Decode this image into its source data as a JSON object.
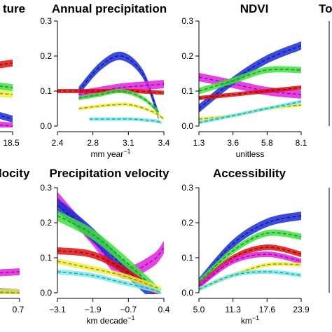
{
  "chart_data": [
    {
      "id": "temperature",
      "type": "line",
      "title": "ture",
      "xlabel": "",
      "xticks": [
        "18.5"
      ],
      "series": [
        {
          "color": "#e01010",
          "x": [
            0,
            1
          ],
          "y": [
            0.13,
            0.18
          ]
        },
        {
          "color": "#1a2ad8",
          "x": [
            0,
            1
          ],
          "y": [
            0.12,
            0.02
          ]
        },
        {
          "color": "#e020e0",
          "x": [
            0,
            1
          ],
          "y": [
            0.03,
            0.0
          ]
        },
        {
          "color": "#40e040",
          "x": [
            0,
            1
          ],
          "y": [
            0.15,
            0.11
          ]
        },
        {
          "color": "#f0f040",
          "x": [
            0,
            1
          ],
          "y": [
            0.12,
            0.09
          ]
        }
      ]
    },
    {
      "id": "annual-precipitation",
      "type": "line",
      "title": "Annual precipitation",
      "xlabel": "mm year",
      "xlabel_sup": "−1",
      "xticks": [
        "2.4",
        "2.8",
        "3.1",
        "3.4"
      ],
      "yticks": [
        "0.0",
        "0.1",
        "0.2",
        "0.3"
      ],
      "ylim": [
        0,
        0.3
      ],
      "xlim": [
        2.4,
        3.4
      ],
      "series": [
        {
          "color": "#1a2ad8",
          "x": [
            2.6,
            2.8,
            3.0,
            3.2,
            3.35
          ],
          "y": [
            0.1,
            0.17,
            0.2,
            0.15,
            0.03
          ],
          "band": 0.012
        },
        {
          "color": "#e020e0",
          "x": [
            2.6,
            2.8,
            3.0,
            3.2,
            3.4
          ],
          "y": [
            0.09,
            0.1,
            0.11,
            0.115,
            0.12
          ],
          "band": 0.012
        },
        {
          "color": "#e01010",
          "x": [
            2.4,
            2.8,
            3.1,
            3.4
          ],
          "y": [
            0.1,
            0.1,
            0.1,
            0.095
          ],
          "band": 0.006
        },
        {
          "color": "#40e040",
          "x": [
            2.6,
            2.8,
            3.0,
            3.2,
            3.35
          ],
          "y": [
            0.08,
            0.09,
            0.1,
            0.08,
            0.04
          ],
          "band": 0.006
        },
        {
          "color": "#f0f040",
          "x": [
            2.6,
            2.9,
            3.1,
            3.3,
            3.4
          ],
          "y": [
            0.05,
            0.06,
            0.06,
            0.04,
            0.02
          ],
          "band": 0.005
        },
        {
          "color": "#70ecf0",
          "x": [
            2.7,
            2.9,
            3.1,
            3.3,
            3.38
          ],
          "y": [
            0.02,
            0.02,
            0.02,
            0.015,
            0.01
          ],
          "band": 0.005
        }
      ]
    },
    {
      "id": "ndvi",
      "type": "line",
      "title": "NDVI",
      "xlabel": "unitless",
      "xticks": [
        "1.3",
        "3.6",
        "5.8",
        "8.1"
      ],
      "yticks": [
        "0.0",
        "0.1",
        "0.2",
        "0.3"
      ],
      "ylim": [
        0,
        0.3
      ],
      "xlim": [
        1.3,
        8.1
      ],
      "series": [
        {
          "color": "#e020e0",
          "x": [
            1.3,
            3.6,
            5.8,
            8.1
          ],
          "y": [
            0.14,
            0.12,
            0.1,
            0.09
          ],
          "band": 0.012
        },
        {
          "color": "#1a2ad8",
          "x": [
            1.3,
            3.6,
            5.8,
            8.1
          ],
          "y": [
            0.05,
            0.13,
            0.19,
            0.23
          ],
          "band": 0.012
        },
        {
          "color": "#40e040",
          "x": [
            1.3,
            3.6,
            5.8,
            8.1
          ],
          "y": [
            0.1,
            0.13,
            0.16,
            0.16
          ],
          "band": 0.009
        },
        {
          "color": "#e01010",
          "x": [
            1.3,
            3.6,
            5.8,
            8.1
          ],
          "y": [
            0.08,
            0.09,
            0.1,
            0.11
          ],
          "band": 0.006
        },
        {
          "color": "#f0f040",
          "x": [
            1.3,
            3.6,
            5.8,
            8.1
          ],
          "y": [
            0.02,
            0.03,
            0.05,
            0.06
          ],
          "band": 0.005
        },
        {
          "color": "#70ecf0",
          "x": [
            1.3,
            3.6,
            5.8,
            8.1
          ],
          "y": [
            0.01,
            0.03,
            0.05,
            0.07
          ],
          "band": 0.005
        }
      ]
    },
    {
      "id": "to-partial",
      "type": "line",
      "title": "To",
      "xlabel": "",
      "series": []
    },
    {
      "id": "velocity",
      "type": "line",
      "title": "locity",
      "xlabel": "",
      "xticks": [
        "0.7"
      ],
      "series": [
        {
          "color": "#e020e0",
          "x": [
            0,
            1
          ],
          "y": [
            0.04,
            0.06
          ]
        },
        {
          "color": "#1a2ad8",
          "x": [
            0,
            1
          ],
          "y": [
            0.02,
            0.0
          ]
        },
        {
          "color": "#f0f040",
          "x": [
            0,
            1
          ],
          "y": [
            0.01,
            0.0
          ]
        }
      ]
    },
    {
      "id": "precipitation-velocity",
      "type": "line",
      "title": "Precipitation velocity",
      "xlabel": "km decade",
      "xlabel_sup": "−1",
      "xticks": [
        "−3.1",
        "−1.9",
        "−0.7",
        "0.4"
      ],
      "yticks": [
        "0.0",
        "0.1",
        "0.2",
        "0.3"
      ],
      "ylim": [
        0,
        0.3
      ],
      "xlim": [
        -3.1,
        0.4
      ],
      "series": [
        {
          "color": "#e020e0",
          "x": [
            -3.1,
            -2.0,
            -1.0,
            0.0,
            0.4
          ],
          "y": [
            0.27,
            0.16,
            0.06,
            0.09,
            0.13
          ],
          "band": 0.018
        },
        {
          "color": "#1a2ad8",
          "x": [
            -3.1,
            -2.0,
            -1.0,
            0.0,
            0.2
          ],
          "y": [
            0.25,
            0.17,
            0.08,
            0.0,
            -0.01
          ],
          "band": 0.02
        },
        {
          "color": "#40e040",
          "x": [
            -3.1,
            -2.0,
            -1.0,
            0.0,
            0.2
          ],
          "y": [
            0.22,
            0.17,
            0.1,
            0.02,
            0.0
          ],
          "band": 0.015
        },
        {
          "color": "#e01010",
          "x": [
            -3.1,
            -2.0,
            -1.0,
            0.0,
            0.3
          ],
          "y": [
            0.12,
            0.11,
            0.07,
            0.01,
            -0.01
          ],
          "band": 0.01
        },
        {
          "color": "#f0f040",
          "x": [
            -3.1,
            -2.0,
            -1.0,
            0.0,
            0.3
          ],
          "y": [
            0.09,
            0.07,
            0.05,
            0.02,
            0.01
          ],
          "band": 0.008
        },
        {
          "color": "#70ecf0",
          "x": [
            -3.1,
            -2.0,
            -1.0,
            0.0,
            0.3
          ],
          "y": [
            0.06,
            0.05,
            0.03,
            0.01,
            0.0
          ],
          "band": 0.007
        }
      ]
    },
    {
      "id": "accessibility",
      "type": "line",
      "title": "Accessibility",
      "xlabel": "km",
      "xlabel_sup": "−1",
      "xticks": [
        "5.0",
        "11.3",
        "17.6",
        "23.9"
      ],
      "yticks": [
        "0.0",
        "0.1",
        "0.2",
        "0.3"
      ],
      "ylim": [
        0,
        0.3
      ],
      "xlim": [
        5.0,
        23.9
      ],
      "series": [
        {
          "color": "#1a2ad8",
          "x": [
            5.0,
            11.3,
            17.6,
            23.9
          ],
          "y": [
            0.03,
            0.14,
            0.2,
            0.22
          ],
          "band": 0.012
        },
        {
          "color": "#40e040",
          "x": [
            5.0,
            11.3,
            17.6,
            23.9
          ],
          "y": [
            0.03,
            0.12,
            0.17,
            0.16
          ],
          "band": 0.009
        },
        {
          "color": "#e01010",
          "x": [
            5.0,
            11.3,
            17.6,
            23.9
          ],
          "y": [
            0.02,
            0.1,
            0.13,
            0.11
          ],
          "band": 0.008
        },
        {
          "color": "#e020e0",
          "x": [
            5.0,
            11.3,
            17.6,
            23.9
          ],
          "y": [
            0.02,
            0.09,
            0.11,
            0.09
          ],
          "band": 0.008
        },
        {
          "color": "#f0f040",
          "x": [
            5.0,
            11.3,
            17.6,
            23.9
          ],
          "y": [
            0.01,
            0.05,
            0.08,
            0.08
          ],
          "band": 0.006
        },
        {
          "color": "#70ecf0",
          "x": [
            5.0,
            11.3,
            17.6,
            23.9
          ],
          "y": [
            0.01,
            0.05,
            0.06,
            0.05
          ],
          "band": 0.006
        }
      ]
    }
  ]
}
